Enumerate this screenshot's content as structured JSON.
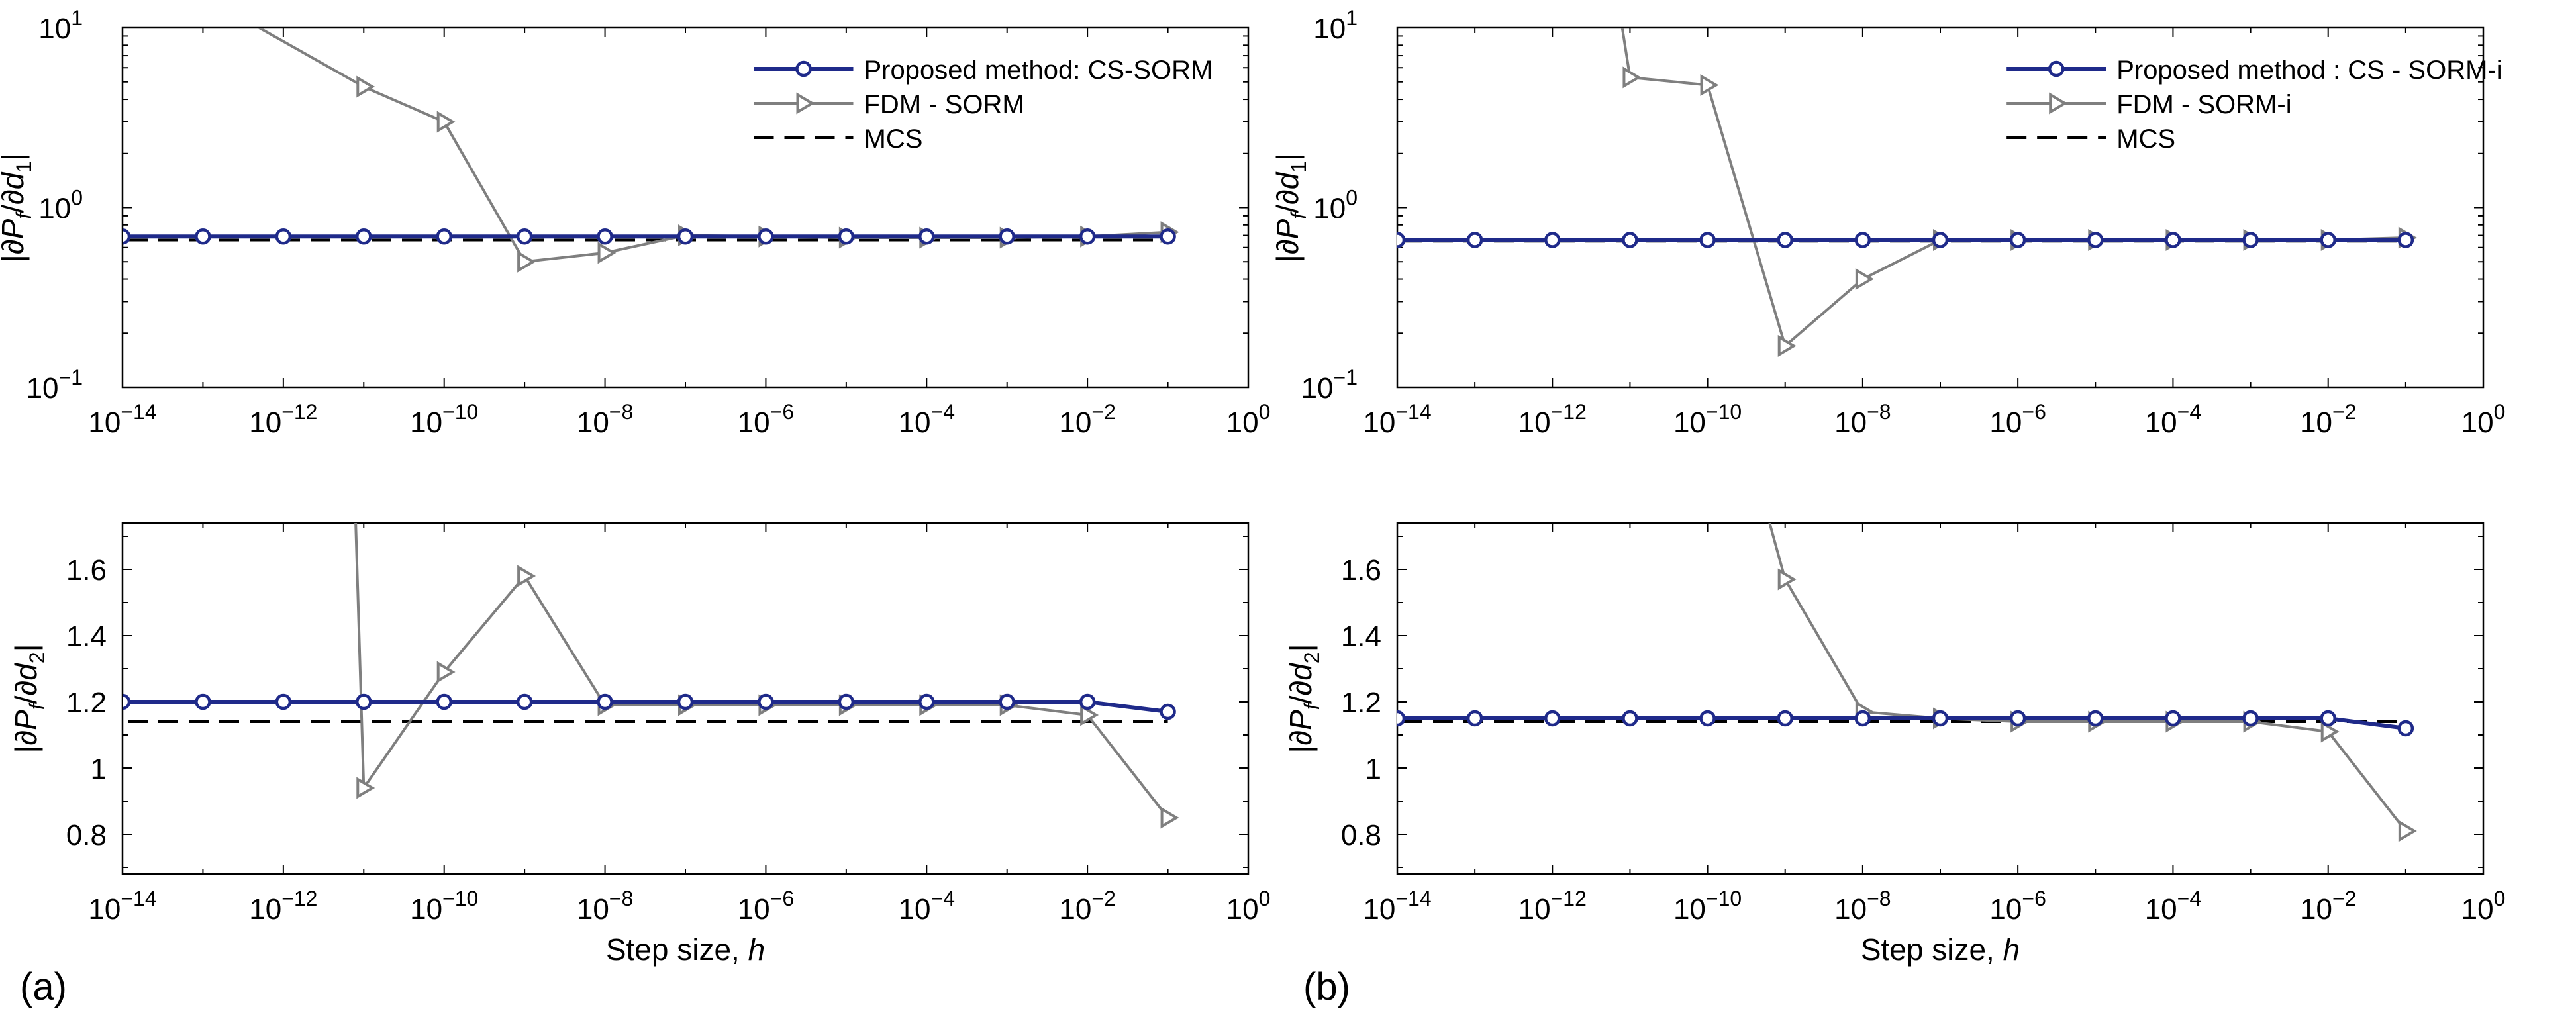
{
  "figure": {
    "panel_labels": [
      "(a)",
      "(b)"
    ],
    "xlabel_prefix": "Step size, ",
    "xlabel_var": "h"
  },
  "chart_data": [
    {
      "id": "a1",
      "type": "line",
      "xscale": "log",
      "yscale": "log",
      "xlim": [
        -14,
        0
      ],
      "ylim": [
        -1,
        1
      ],
      "xticks": [
        -14,
        -12,
        -10,
        -8,
        -6,
        -4,
        -2,
        0
      ],
      "yticks": [
        -1,
        0,
        1
      ],
      "ylabel": {
        "sub": "1"
      },
      "legend": {
        "position": "top-right",
        "entries": [
          "Proposed method: CS-SORM",
          "FDM - SORM",
          "MCS"
        ]
      },
      "mcs": 0.66,
      "series": [
        {
          "name": "Proposed method: CS-SORM",
          "color": "#1f2a8a",
          "marker": "circle",
          "x": [
            -14,
            -13,
            -12,
            -11,
            -10,
            -9,
            -8,
            -7,
            -6,
            -5,
            -4,
            -3,
            -2,
            -1
          ],
          "y": [
            0.69,
            0.69,
            0.69,
            0.69,
            0.69,
            0.69,
            0.69,
            0.69,
            0.69,
            0.69,
            0.69,
            0.69,
            0.69,
            0.69
          ]
        },
        {
          "name": "FDM - SORM",
          "color": "#7f7f7f",
          "marker": "triangle-right",
          "x": [
            -12.3,
            -11,
            -10,
            -9,
            -8,
            -7,
            -6,
            -5,
            -4,
            -3,
            -2,
            -1
          ],
          "y": [
            10,
            4.7,
            3.0,
            0.5,
            0.56,
            0.7,
            0.69,
            0.68,
            0.68,
            0.68,
            0.69,
            0.73
          ],
          "visible_from": 1
        }
      ]
    },
    {
      "id": "a2",
      "type": "line",
      "xscale": "log",
      "yscale": "linear",
      "xlim": [
        -14,
        0
      ],
      "ylim": [
        0.68,
        1.74
      ],
      "xticks": [
        -14,
        -12,
        -10,
        -8,
        -6,
        -4,
        -2,
        0
      ],
      "yticks": [
        0.8,
        1,
        1.2,
        1.4,
        1.6
      ],
      "ytick_labels": [
        "0.8",
        "1",
        "1.2",
        "1.4",
        "1.6"
      ],
      "ylabel": {
        "sub": "2"
      },
      "mcs": 1.14,
      "series": [
        {
          "name": "Proposed method: CS-SORM",
          "color": "#1f2a8a",
          "marker": "circle",
          "x": [
            -14,
            -13,
            -12,
            -11,
            -10,
            -9,
            -8,
            -7,
            -6,
            -5,
            -4,
            -3,
            -2,
            -1
          ],
          "y": [
            1.2,
            1.2,
            1.2,
            1.2,
            1.2,
            1.2,
            1.2,
            1.2,
            1.2,
            1.2,
            1.2,
            1.2,
            1.2,
            1.17
          ]
        },
        {
          "name": "FDM - SORM",
          "color": "#7f7f7f",
          "marker": "triangle-right",
          "x": [
            -11.1,
            -11,
            -10,
            -9,
            -8,
            -7,
            -6,
            -5,
            -4,
            -3,
            -2,
            -1
          ],
          "y": [
            1.74,
            0.94,
            1.29,
            1.58,
            1.19,
            1.19,
            1.19,
            1.19,
            1.19,
            1.19,
            1.16,
            0.85
          ],
          "visible_from": 1
        }
      ]
    },
    {
      "id": "b1",
      "type": "line",
      "xscale": "log",
      "yscale": "log",
      "xlim": [
        -14,
        0
      ],
      "ylim": [
        -1,
        1
      ],
      "xticks": [
        -14,
        -12,
        -10,
        -8,
        -6,
        -4,
        -2,
        0
      ],
      "yticks": [
        -1,
        0,
        1
      ],
      "ylabel": {
        "sub": "1"
      },
      "legend": {
        "position": "top-right",
        "entries": [
          "Proposed method : CS - SORM-i",
          "FDM - SORM-i",
          "MCS"
        ]
      },
      "mcs": 0.65,
      "series": [
        {
          "name": "Proposed method : CS - SORM-i",
          "color": "#1f2a8a",
          "marker": "circle",
          "x": [
            -14,
            -13,
            -12,
            -11,
            -10,
            -9,
            -8,
            -7,
            -6,
            -5,
            -4,
            -3,
            -2,
            -1
          ],
          "y": [
            0.66,
            0.66,
            0.66,
            0.66,
            0.66,
            0.66,
            0.66,
            0.66,
            0.66,
            0.66,
            0.66,
            0.66,
            0.66,
            0.66
          ]
        },
        {
          "name": "FDM - SORM-i",
          "color": "#7f7f7f",
          "marker": "triangle-right",
          "x": [
            -11.1,
            -11,
            -10,
            -9,
            -8,
            -7,
            -6,
            -5,
            -4,
            -3,
            -2,
            -1
          ],
          "y": [
            10,
            5.3,
            4.8,
            0.17,
            0.4,
            0.66,
            0.66,
            0.66,
            0.66,
            0.66,
            0.66,
            0.68
          ],
          "visible_from": 1
        }
      ]
    },
    {
      "id": "b2",
      "type": "line",
      "xscale": "log",
      "yscale": "linear",
      "xlim": [
        -14,
        0
      ],
      "ylim": [
        0.68,
        1.74
      ],
      "xticks": [
        -14,
        -12,
        -10,
        -8,
        -6,
        -4,
        -2,
        0
      ],
      "yticks": [
        0.8,
        1,
        1.2,
        1.4,
        1.6
      ],
      "ytick_labels": [
        "0.8",
        "1",
        "1.2",
        "1.4",
        "1.6"
      ],
      "ylabel": {
        "sub": "2"
      },
      "mcs": 1.14,
      "series": [
        {
          "name": "Proposed method : CS - SORM-i",
          "color": "#1f2a8a",
          "marker": "circle",
          "x": [
            -14,
            -13,
            -12,
            -11,
            -10,
            -9,
            -8,
            -7,
            -6,
            -5,
            -4,
            -3,
            -2,
            -1
          ],
          "y": [
            1.15,
            1.15,
            1.15,
            1.15,
            1.15,
            1.15,
            1.15,
            1.15,
            1.15,
            1.15,
            1.15,
            1.15,
            1.15,
            1.12
          ]
        },
        {
          "name": "FDM - SORM-i",
          "color": "#7f7f7f",
          "marker": "triangle-right",
          "x": [
            -9.2,
            -9,
            -8,
            -7,
            -6,
            -5,
            -4,
            -3,
            -2,
            -1
          ],
          "y": [
            1.74,
            1.57,
            1.17,
            1.15,
            1.14,
            1.14,
            1.14,
            1.14,
            1.11,
            0.81
          ],
          "visible_from": 1
        }
      ]
    }
  ]
}
